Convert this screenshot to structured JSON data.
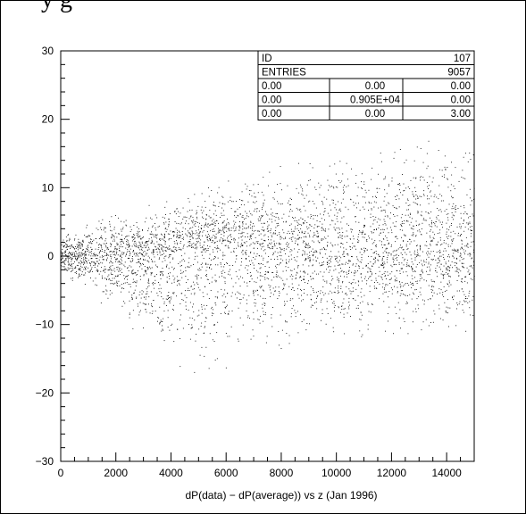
{
  "header": {
    "partial_text": "y       g"
  },
  "stats_box": {
    "rows": [
      [
        "ID",
        "",
        "107"
      ],
      [
        "ENTRIES",
        "",
        "9057"
      ],
      [
        "0.00",
        "0.00",
        "0.00"
      ],
      [
        "0.00",
        "0.905E+04",
        "0.00"
      ],
      [
        "0.00",
        "0.00",
        "3.00"
      ]
    ]
  },
  "chart_data": {
    "type": "scatter",
    "title": "",
    "xlabel": "dP(data) − dP(average)) vs z (Jan 1996)",
    "ylabel": "",
    "xlim": [
      0,
      15000
    ],
    "ylim": [
      -30,
      30
    ],
    "xticks": [
      0,
      2000,
      4000,
      6000,
      8000,
      10000,
      12000,
      14000
    ],
    "xtick_labels": [
      "0",
      "2000",
      "4000",
      "6000",
      "8000",
      "10000",
      "12000",
      "14000"
    ],
    "yticks": [
      -30,
      -20,
      -10,
      0,
      10,
      20,
      30
    ],
    "ytick_labels": [
      "−30",
      "−20",
      "−10",
      "0",
      "10",
      "20",
      "30"
    ],
    "entries": 9057,
    "distribution_sketch": {
      "x_range": [
        0,
        15000
      ],
      "y_upper_envelope": [
        [
          0,
          4
        ],
        [
          1000,
          6
        ],
        [
          4000,
          9
        ],
        [
          8000,
          14
        ],
        [
          12000,
          19
        ],
        [
          15000,
          20
        ]
      ],
      "y_lower_envelope": [
        [
          0,
          -4
        ],
        [
          1000,
          -6
        ],
        [
          5000,
          -19
        ],
        [
          8000,
          -15
        ],
        [
          12000,
          -12
        ],
        [
          15000,
          -13
        ]
      ],
      "y_center_band": [
        [
          0,
          0
        ],
        [
          3000,
          0
        ],
        [
          6000,
          2
        ],
        [
          9000,
          1
        ],
        [
          15000,
          0
        ]
      ]
    },
    "marker_color": "#000000"
  }
}
